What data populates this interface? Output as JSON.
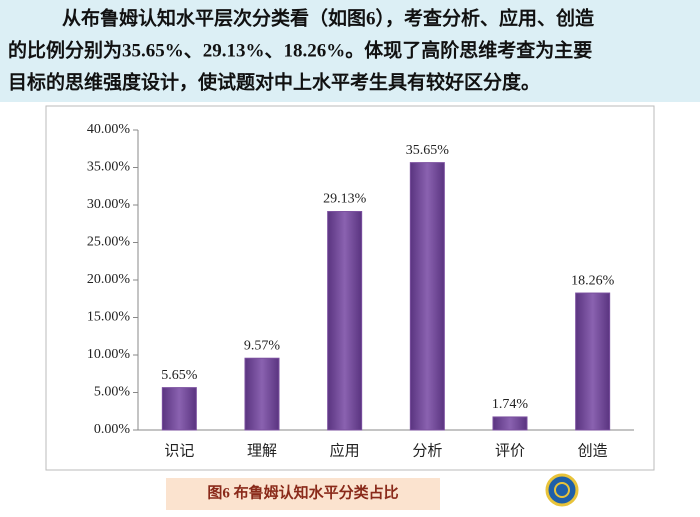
{
  "text": {
    "lines": [
      "从布鲁姆认知水平层次分类看（如图6），考查分析、应用、创造",
      "的比例分别为35.65%、29.13%、18.26%。体现了高阶思维考查为主要",
      "目标的思维强度设计，使试题对中上水平考生具有较好区分度。"
    ]
  },
  "chart_data": {
    "type": "bar",
    "categories": [
      "识记",
      "理解",
      "应用",
      "分析",
      "评价",
      "创造"
    ],
    "values": [
      5.65,
      9.57,
      29.13,
      35.65,
      1.74,
      18.26
    ],
    "value_labels": [
      "5.65%",
      "9.57%",
      "29.13%",
      "35.65%",
      "1.74%",
      "18.26%"
    ],
    "color": "#7a4f9e",
    "ylim": [
      0,
      40
    ],
    "yticks": [
      {
        "value": 0,
        "label": "0.00%"
      },
      {
        "value": 5,
        "label": "5.00%"
      },
      {
        "value": 10,
        "label": "10.00%"
      },
      {
        "value": 15,
        "label": "15.00%"
      },
      {
        "value": 20,
        "label": "20.00%"
      },
      {
        "value": 25,
        "label": "25.00%"
      },
      {
        "value": 30,
        "label": "30.00%"
      },
      {
        "value": 35,
        "label": "35.00%"
      },
      {
        "value": 40,
        "label": "40.00%"
      }
    ],
    "grid": false
  },
  "caption": "图6   布鲁姆认知水平分类占比"
}
